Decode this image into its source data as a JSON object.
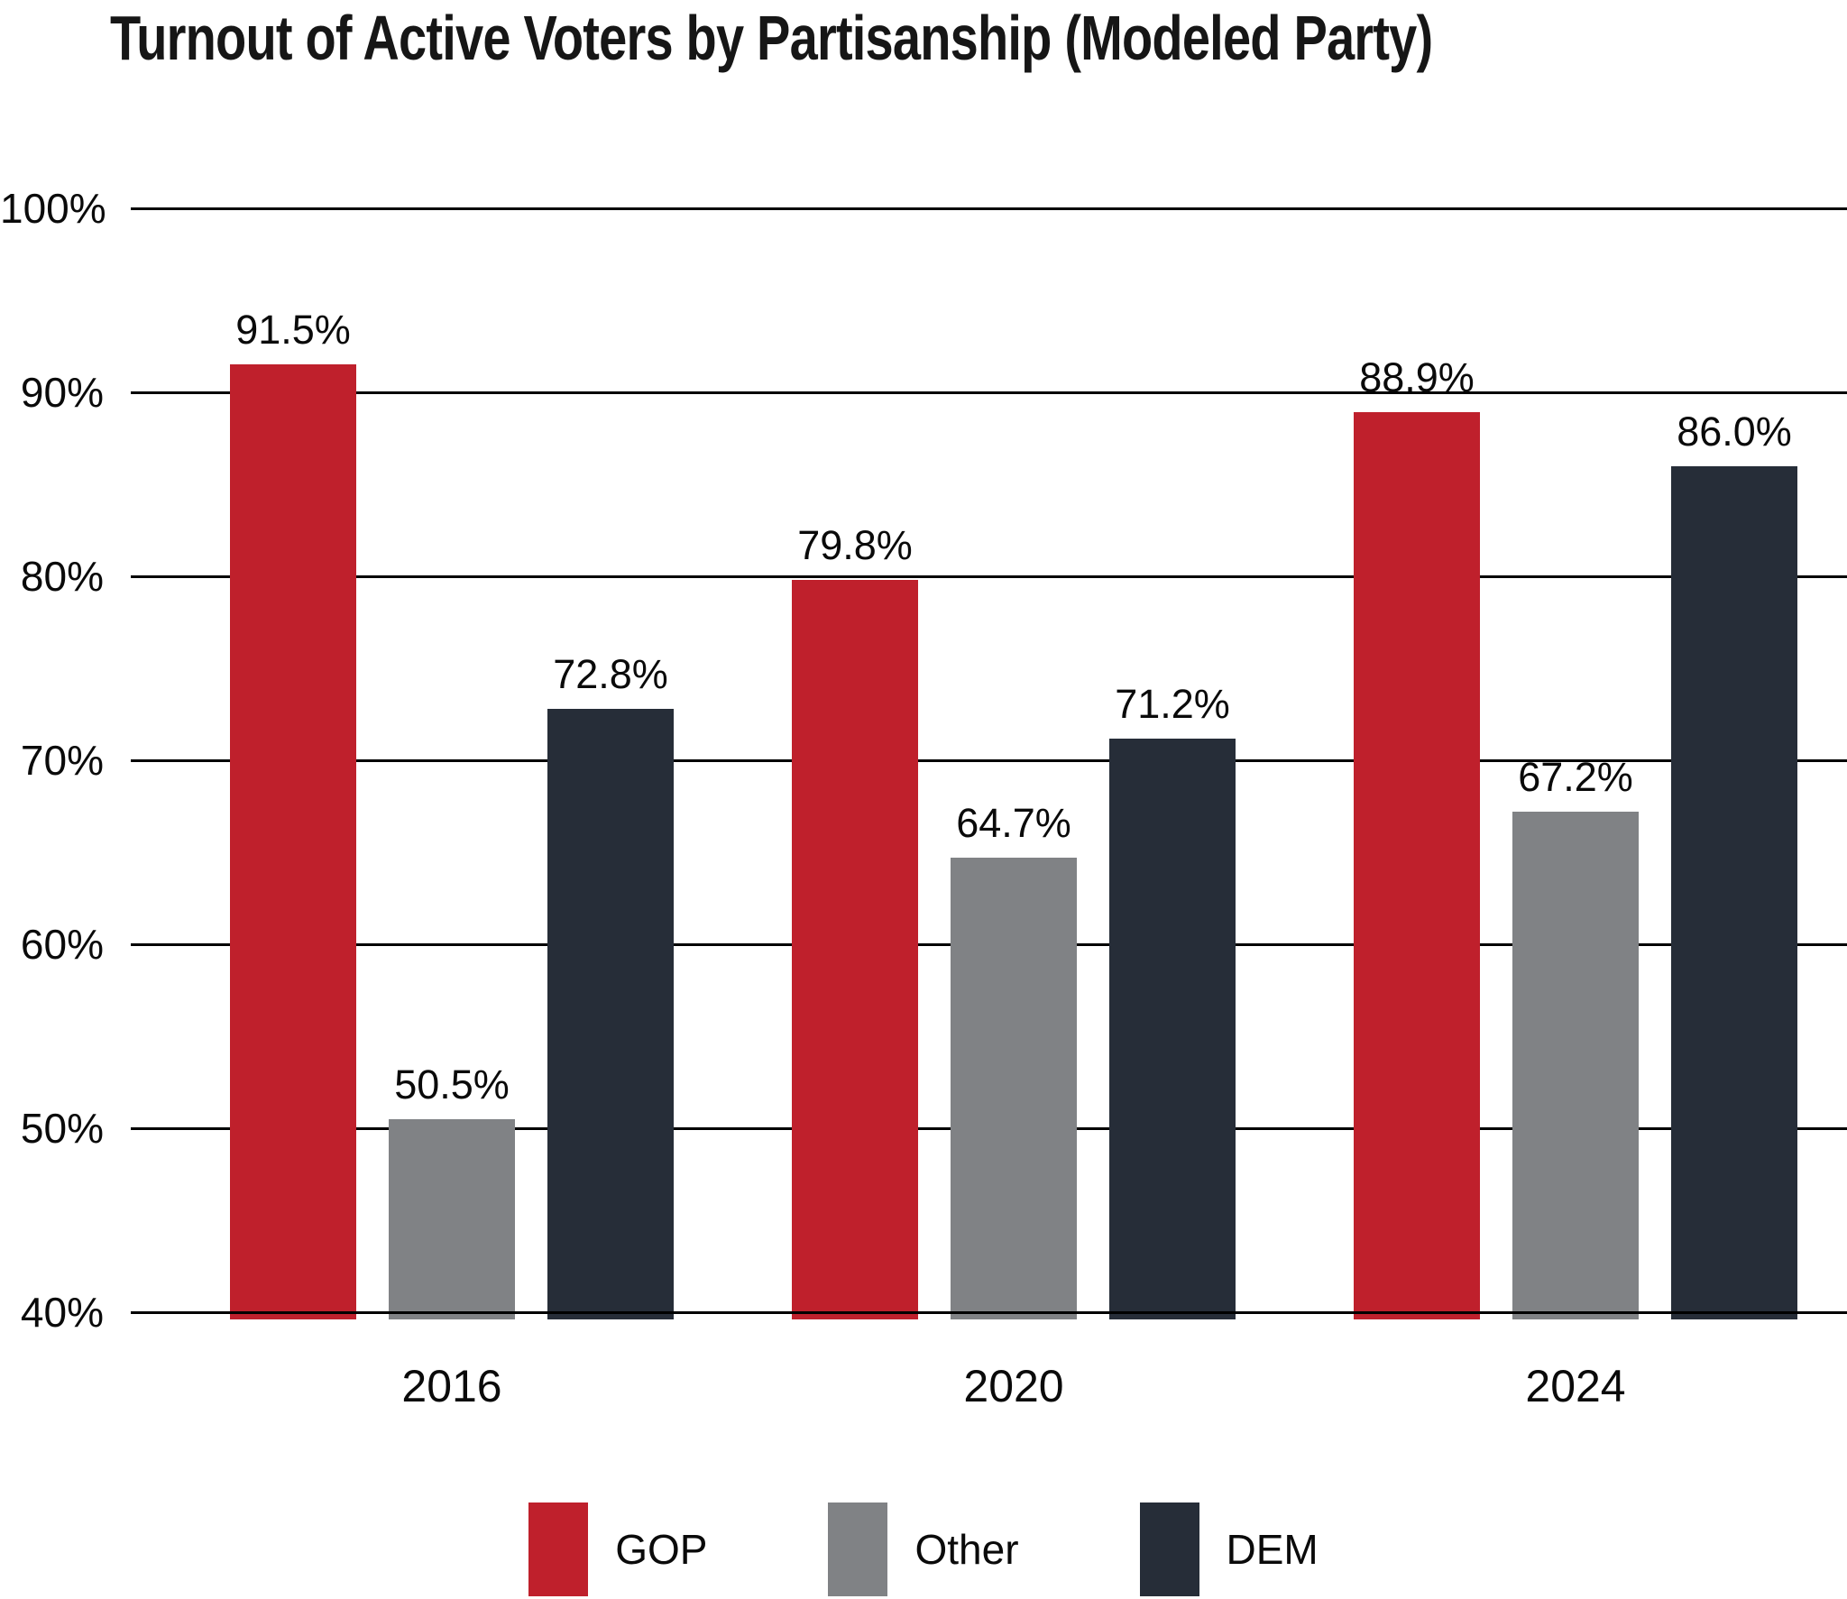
{
  "title": "Turnout of Active Voters by Partisanship (Modeled Party)",
  "chart_data": {
    "type": "bar",
    "title": "Turnout of Active Voters by Partisanship (Modeled Party)",
    "categories": [
      "2016",
      "2020",
      "2024"
    ],
    "series": [
      {
        "name": "GOP",
        "color": "#BF202C",
        "values": [
          91.5,
          79.8,
          88.9
        ],
        "value_labels": [
          "91.5%",
          "79.8%",
          "88.9%"
        ]
      },
      {
        "name": "Other",
        "color": "#808285",
        "values": [
          50.5,
          64.7,
          67.2
        ],
        "value_labels": [
          "50.5%",
          "64.7%",
          "67.2%"
        ]
      },
      {
        "name": "DEM",
        "color": "#262D38",
        "values": [
          72.8,
          71.2,
          86.0
        ],
        "value_labels": [
          "72.8%",
          "71.2%",
          "86.0%"
        ]
      }
    ],
    "xlabel": "",
    "ylabel": "",
    "ylim": [
      40,
      100
    ],
    "grid": true,
    "gridline_values": [
      100,
      90,
      80,
      70,
      60,
      50,
      40
    ],
    "ytick_labels": [
      "100%",
      "90%",
      "80%",
      "70%",
      "60%",
      "50%",
      "40%"
    ],
    "legend_position": "bottom",
    "colors": {
      "gop_red": "#BF202C",
      "other_gray": "#808285",
      "dem_navy": "#262D38",
      "gridline_black": "#000000",
      "text_black": "#0a0a0a"
    }
  }
}
